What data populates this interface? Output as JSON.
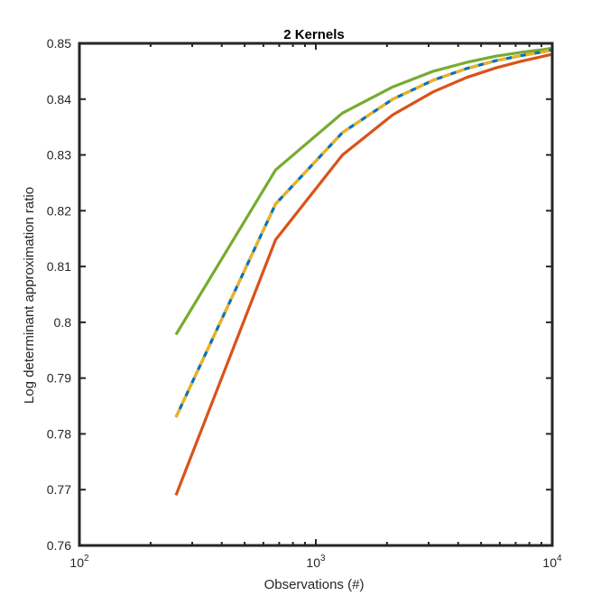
{
  "chart_data": {
    "type": "line",
    "title": "2 Kernels",
    "xlabel": "Observations (#)",
    "ylabel": "Log determinant approximation ratio",
    "xscale": "log",
    "xlim": [
      100,
      10000
    ],
    "ylim": [
      0.76,
      0.85
    ],
    "grid": false,
    "legend": "none",
    "x_tick_labels": [
      {
        "base": "10",
        "exp": "2"
      },
      {
        "base": "10",
        "exp": "3"
      },
      {
        "base": "10",
        "exp": "4"
      }
    ],
    "y_ticks": [
      0.76,
      0.77,
      0.78,
      0.79,
      0.8,
      0.81,
      0.82,
      0.83,
      0.84,
      0.85
    ],
    "y_tick_labels": [
      "0.76",
      "0.77",
      "0.78",
      "0.79",
      "0.8",
      "0.81",
      "0.82",
      "0.83",
      "0.84",
      "0.85"
    ],
    "x": [
      256,
      676,
      1296,
      2116,
      3136,
      4356,
      5776,
      7396,
      9216,
      10000
    ],
    "series": [
      {
        "color": "#77ac30",
        "dash": "solid",
        "values": [
          0.7978,
          0.8273,
          0.8375,
          0.8422,
          0.845,
          0.8466,
          0.8477,
          0.8484,
          0.8489,
          0.8491
        ]
      },
      {
        "color": "#0072bd",
        "dash": "solid",
        "values": [
          0.783,
          0.8212,
          0.834,
          0.84,
          0.8434,
          0.8455,
          0.8469,
          0.8478,
          0.8485,
          0.8488
        ]
      },
      {
        "color": "#edb120",
        "dash": "dashed",
        "values": [
          0.783,
          0.8212,
          0.834,
          0.84,
          0.8434,
          0.8455,
          0.8469,
          0.8478,
          0.8485,
          0.8488
        ]
      },
      {
        "color": "#d95319",
        "dash": "solid",
        "values": [
          0.769,
          0.8148,
          0.83,
          0.8372,
          0.8413,
          0.8439,
          0.8456,
          0.8468,
          0.8477,
          0.848
        ]
      }
    ]
  }
}
